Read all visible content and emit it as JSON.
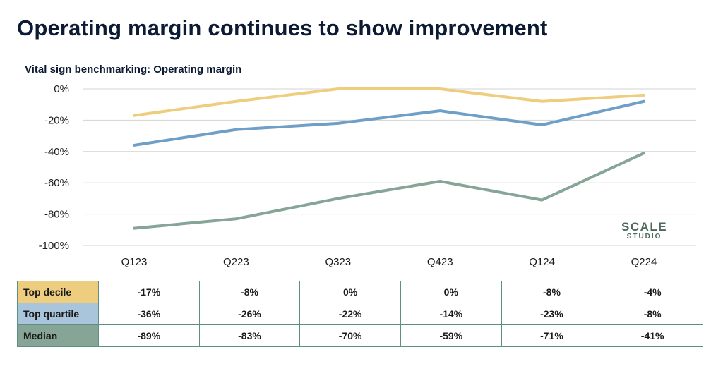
{
  "title": "Operating margin continues to show improvement",
  "logo": {
    "line1": "SCALE",
    "line2": "STUDIO"
  },
  "chart_data": {
    "type": "line",
    "title": "Vital sign benchmarking: Operating margin",
    "categories": [
      "Q123",
      "Q223",
      "Q323",
      "Q423",
      "Q124",
      "Q224"
    ],
    "ylim": [
      -100,
      0
    ],
    "yticks": [
      0,
      -20,
      -40,
      -60,
      -80,
      -100
    ],
    "ytick_labels": [
      "0%",
      "-20%",
      "-40%",
      "-60%",
      "-80%",
      "-100%"
    ],
    "grid": true,
    "series": [
      {
        "name": "Top decile",
        "color": "#efcd7f",
        "values": [
          -17,
          -8,
          0,
          0,
          -8,
          -4
        ]
      },
      {
        "name": "Top quartile",
        "color": "#6f9fc7",
        "values": [
          -36,
          -26,
          -22,
          -14,
          -23,
          -8
        ]
      },
      {
        "name": "Median",
        "color": "#86a597",
        "values": [
          -89,
          -83,
          -70,
          -59,
          -71,
          -41
        ]
      }
    ]
  },
  "table": {
    "rows": [
      {
        "label": "Top decile",
        "color": "#efcd7f",
        "cells": [
          "-17%",
          "-8%",
          "0%",
          "0%",
          "-8%",
          "-4%"
        ]
      },
      {
        "label": "Top quartile",
        "color": "#a9c5dc",
        "cells": [
          "-36%",
          "-26%",
          "-22%",
          "-14%",
          "-23%",
          "-8%"
        ]
      },
      {
        "label": "Median",
        "color": "#86a597",
        "cells": [
          "-89%",
          "-83%",
          "-70%",
          "-59%",
          "-71%",
          "-41%"
        ]
      }
    ]
  }
}
